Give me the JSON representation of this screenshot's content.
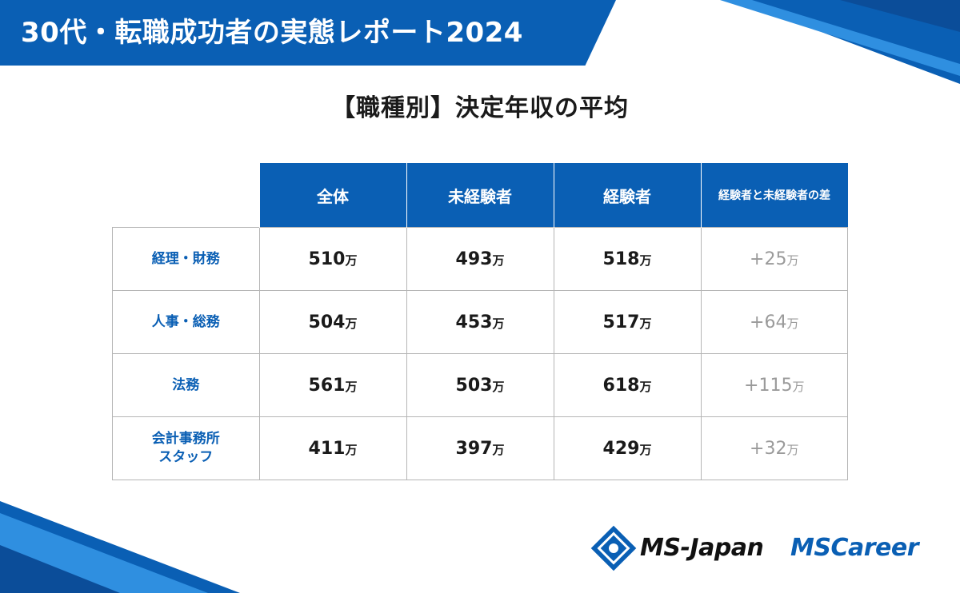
{
  "header": {
    "title": "30代・転職成功者の実態レポート2024"
  },
  "subtitle": "【職種別】決定年収の平均",
  "chart_data": {
    "type": "table",
    "title": "【職種別】決定年収の平均",
    "unit": "万",
    "columns": [
      "全体",
      "未経験者",
      "経験者",
      "経験者と未経験者の差"
    ],
    "rows": [
      {
        "label": [
          "経理・財務"
        ],
        "values": [
          "510",
          "493",
          "518",
          "+25"
        ]
      },
      {
        "label": [
          "人事・総務"
        ],
        "values": [
          "504",
          "453",
          "517",
          "+64"
        ]
      },
      {
        "label": [
          "法務"
        ],
        "values": [
          "561",
          "503",
          "618",
          "+115"
        ]
      },
      {
        "label": [
          "会計事務所",
          "スタッフ"
        ],
        "values": [
          "411",
          "397",
          "429",
          "+32"
        ]
      }
    ]
  },
  "brand": {
    "logo1": "MS-Japan",
    "logo2": "MSCareer",
    "primary_color": "#0a5fb4",
    "logo1_icon": "ms-japan-emblem-icon"
  }
}
